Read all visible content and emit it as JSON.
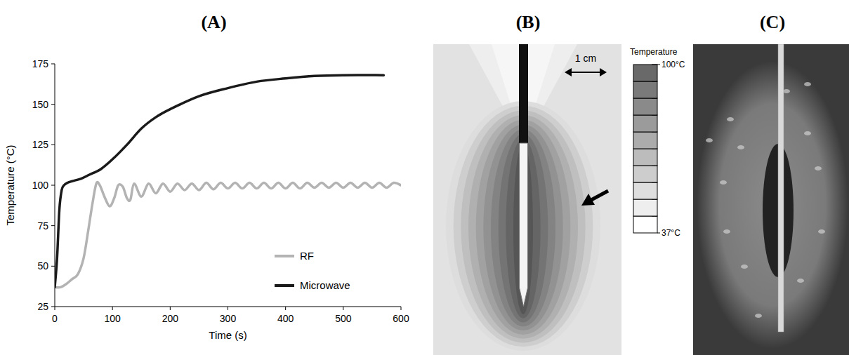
{
  "chart_data": {
    "type": "line",
    "title": "(A)",
    "x_label": "Time (s)",
    "y_label": "Temperature (°C)",
    "xlim": [
      0,
      600
    ],
    "xticks": [
      0,
      100,
      200,
      300,
      400,
      500,
      600
    ],
    "ylim": [
      25,
      175
    ],
    "yticks": [
      25,
      50,
      75,
      100,
      125,
      150,
      175
    ],
    "grid": false,
    "legend": "lower right",
    "series": [
      {
        "name": "RF",
        "color": "#b3b3b3",
        "line_style": "solid",
        "x": [
          0,
          10,
          20,
          30,
          40,
          50,
          58,
          65,
          72,
          78,
          86,
          95,
          103,
          110,
          118,
          125,
          131,
          137.5,
          150,
          162.5,
          175,
          187.5,
          200,
          212.5,
          225,
          237.5,
          250,
          262.5,
          275,
          287.5,
          300,
          312.5,
          325,
          337.5,
          350,
          362.5,
          375,
          387.5,
          400,
          412.5,
          425,
          437.5,
          450,
          462.5,
          475,
          487.5,
          500,
          512.5,
          525,
          537.5,
          550,
          562.5,
          575,
          587.5,
          600
        ],
        "values": [
          37,
          37,
          39,
          42,
          45,
          55,
          72,
          88,
          101,
          100,
          93,
          87,
          92,
          100,
          99,
          92,
          91,
          101,
          93,
          101,
          95,
          101,
          96,
          101,
          97,
          101,
          97,
          101.5,
          97.5,
          101.5,
          98,
          101.5,
          98,
          101.5,
          98,
          101.5,
          98,
          101.5,
          98,
          101.5,
          98,
          101.5,
          98.5,
          101.5,
          98.5,
          101.5,
          98.5,
          101.5,
          98.5,
          101.5,
          98.5,
          101.5,
          98.5,
          101.5,
          100
        ]
      },
      {
        "name": "Microwave",
        "color": "#1a1a1a",
        "line_style": "solid",
        "x": [
          0,
          4,
          8,
          12,
          16,
          22,
          30,
          45,
          60,
          80,
          100,
          125,
          150,
          175,
          200,
          250,
          300,
          350,
          400,
          450,
          500,
          570
        ],
        "values": [
          37,
          55,
          85,
          97,
          100,
          101.5,
          102.5,
          104,
          106.5,
          110,
          116,
          125,
          135,
          142,
          147,
          155,
          160,
          164,
          166,
          167.5,
          168,
          168
        ]
      }
    ]
  },
  "diagram": {
    "label": "(B)",
    "scale_label": "1 cm",
    "colorbar": {
      "title": "Temperature",
      "range": [
        37,
        100
      ],
      "ticks": [
        {
          "value": 100,
          "label": "100°C"
        },
        {
          "value": 37,
          "label": "37°C"
        }
      ]
    }
  },
  "photo": {
    "label": "(C)"
  }
}
